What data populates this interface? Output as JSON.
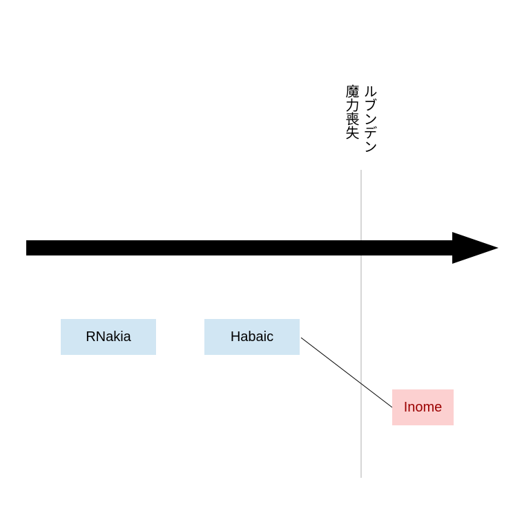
{
  "timeline": {
    "marker": {
      "label_line_1": "ルブンデン",
      "label_line_2": "魔力喪失"
    },
    "events": [
      {
        "label": "RNakia"
      },
      {
        "label": "Habaic"
      },
      {
        "label": "Inome"
      }
    ]
  },
  "colors": {
    "arrow": "#000000",
    "marker_line": "#c8c8c8",
    "connector": "#000000",
    "event_box_fill": "#d1e6f3",
    "event_box_text": "#000000",
    "highlight_box_fill": "#fcd0d0",
    "highlight_box_text": "#9b0000"
  }
}
